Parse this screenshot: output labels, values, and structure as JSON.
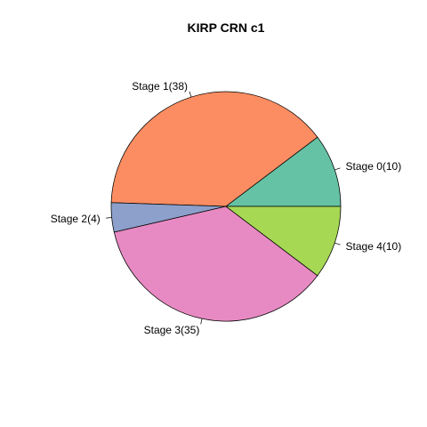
{
  "chart_data": {
    "type": "pie",
    "title": "KIRP CRN c1",
    "slices": [
      {
        "label": "Stage 0(10)",
        "value": 10,
        "color": "#66C2A5"
      },
      {
        "label": "Stage 1(38)",
        "value": 38,
        "color": "#FC8D62"
      },
      {
        "label": "Stage 2(4)",
        "value": 4,
        "color": "#8DA0CB"
      },
      {
        "label": "Stage 3(35)",
        "value": 35,
        "color": "#E78AC3"
      },
      {
        "label": "Stage 4(10)",
        "value": 10,
        "color": "#A6D854"
      }
    ],
    "direction": "counterclockwise",
    "start_angle_deg": 0
  }
}
